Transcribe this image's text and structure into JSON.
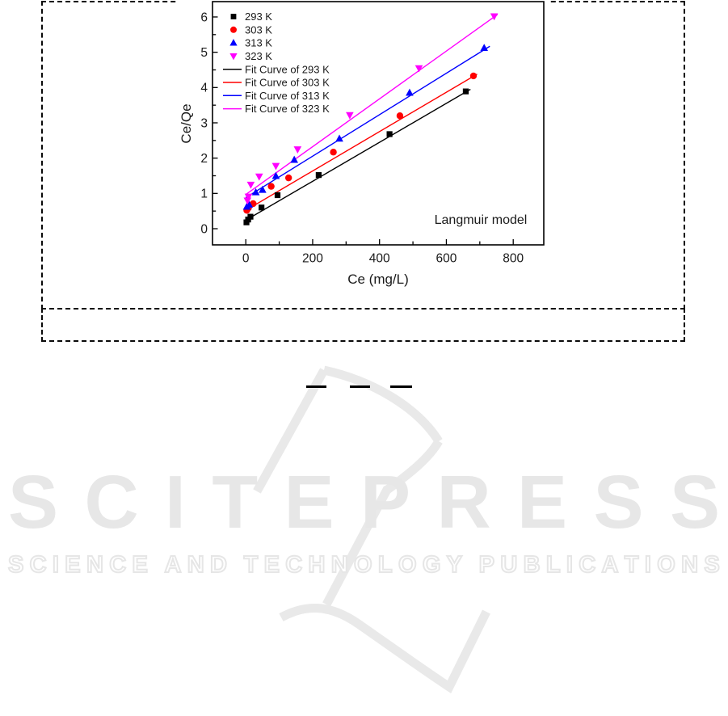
{
  "chart_data": {
    "type": "scatter",
    "title": "",
    "xlabel": "Ce (mg/L)",
    "ylabel": "Ce/Qe",
    "annotation": "Langmuir model",
    "xlim": [
      -100,
      900
    ],
    "ylim": [
      -0.5,
      6.5
    ],
    "x_ticks": [
      0,
      200,
      400,
      600,
      800
    ],
    "x_minor_ticks": [
      100,
      300,
      500,
      700
    ],
    "y_ticks": [
      0,
      1,
      2,
      3,
      4,
      5,
      6
    ],
    "y_minor_ticks": [
      0.5,
      1.5,
      2.5,
      3.5,
      4.5,
      5.5
    ],
    "grid": false,
    "legend_position": "top-left",
    "series": [
      {
        "name": "293 K",
        "marker": "square",
        "color": "#000000",
        "points": [
          [
            2,
            0.18
          ],
          [
            7,
            0.26
          ],
          [
            14,
            0.34
          ],
          [
            47,
            0.6
          ],
          [
            95,
            0.95
          ],
          [
            218,
            1.52
          ],
          [
            430,
            2.68
          ],
          [
            658,
            3.89
          ]
        ]
      },
      {
        "name": "303 K",
        "marker": "circle",
        "color": "#ff0000",
        "points": [
          [
            3,
            0.52
          ],
          [
            8,
            0.59
          ],
          [
            22,
            0.71
          ],
          [
            76,
            1.2
          ],
          [
            128,
            1.44
          ],
          [
            262,
            2.17
          ],
          [
            461,
            3.2
          ],
          [
            681,
            4.33
          ]
        ]
      },
      {
        "name": "313 K",
        "marker": "triangle-up",
        "color": "#0000ff",
        "points": [
          [
            3,
            0.62
          ],
          [
            10,
            0.68
          ],
          [
            30,
            1.03
          ],
          [
            50,
            1.1
          ],
          [
            90,
            1.49
          ],
          [
            145,
            1.95
          ],
          [
            280,
            2.55
          ],
          [
            490,
            3.85
          ],
          [
            713,
            5.12
          ]
        ]
      },
      {
        "name": "323 K",
        "marker": "triangle-down",
        "color": "#ff00ff",
        "points": [
          [
            5,
            0.8
          ],
          [
            8,
            0.91
          ],
          [
            15,
            1.25
          ],
          [
            40,
            1.48
          ],
          [
            90,
            1.78
          ],
          [
            155,
            2.25
          ],
          [
            311,
            3.22
          ],
          [
            518,
            4.55
          ],
          [
            743,
            6.02
          ]
        ]
      }
    ],
    "fit_lines": [
      {
        "name": "Fit Curve of 293 K",
        "color": "#000000",
        "from": [
          0,
          0.24
        ],
        "to": [
          672,
          3.95
        ]
      },
      {
        "name": "Fit Curve of 303 K",
        "color": "#ff0000",
        "from": [
          0,
          0.52
        ],
        "to": [
          692,
          4.38
        ]
      },
      {
        "name": "Fit Curve of 313 K",
        "color": "#0000ff",
        "from": [
          0,
          0.88
        ],
        "to": [
          730,
          5.17
        ]
      },
      {
        "name": "Fit Curve of 323 K",
        "color": "#ff00ff",
        "from": [
          0,
          0.97
        ],
        "to": [
          753,
          6.07
        ]
      }
    ]
  },
  "watermark": {
    "logo_text": "SCITEPRESS",
    "tagline": "SCIENCE AND TECHNOLOGY PUBLICATIONS",
    "logo_color": "#e7e7e7",
    "graphic_color": "#e9e9e9"
  },
  "annotations": {
    "citation_dash_count": 3
  }
}
